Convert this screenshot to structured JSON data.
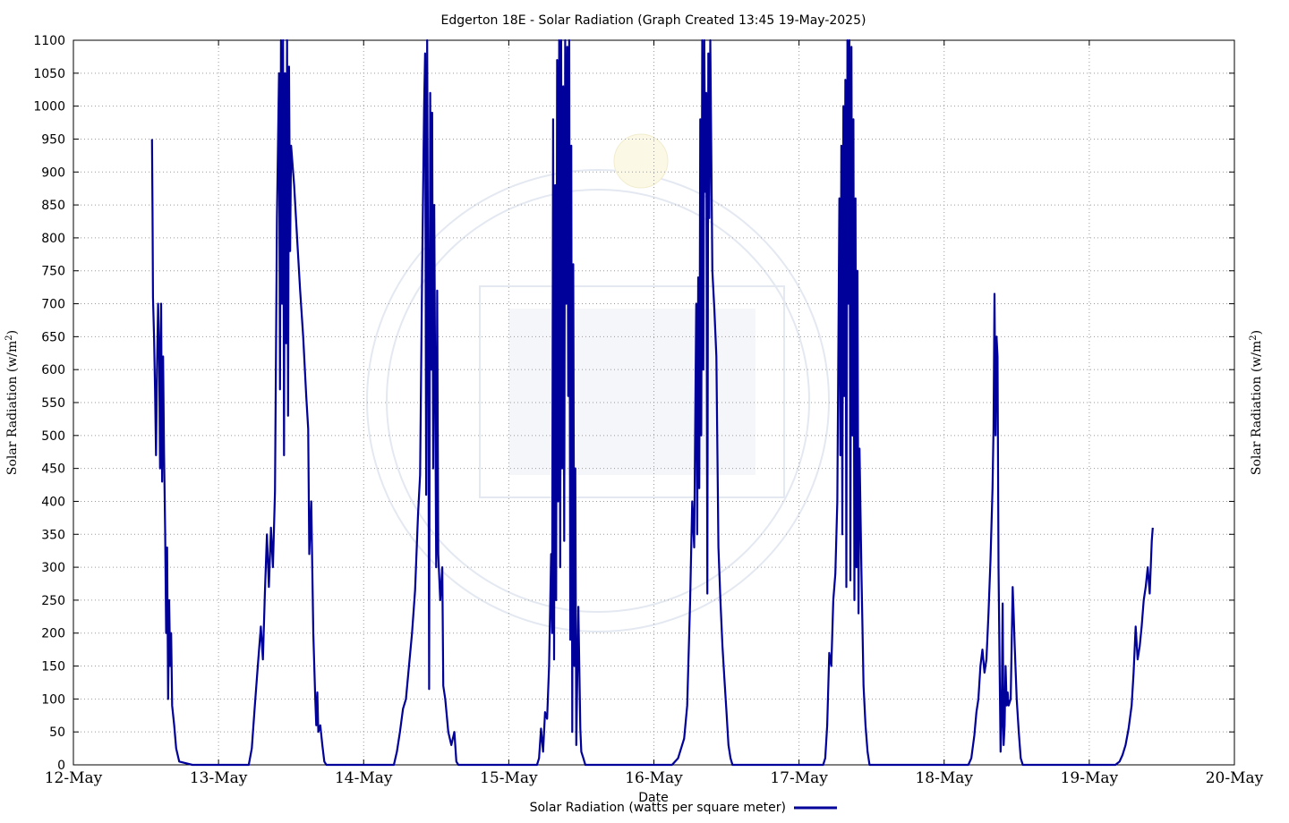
{
  "chart_data": {
    "type": "line",
    "title": "Edgerton 18E - Solar Radiation (Graph Created 13:45 19-May-2025)",
    "xlabel": "Date",
    "ylabel": "Solar Radiation (w/m",
    "ylabel_sup": "2",
    "ylabel_end": ")",
    "x_ticks": [
      "12-May",
      "13-May",
      "14-May",
      "15-May",
      "16-May",
      "17-May",
      "18-May",
      "19-May",
      "20-May"
    ],
    "xlim": [
      "2025-05-12 00:00",
      "2025-05-20 00:00"
    ],
    "ylim": [
      0,
      1100
    ],
    "y_ticks": [
      0,
      50,
      100,
      150,
      200,
      250,
      300,
      350,
      400,
      450,
      500,
      550,
      600,
      650,
      700,
      750,
      800,
      850,
      900,
      950,
      1000,
      1050,
      1100
    ],
    "grid": true,
    "legend_position": "bottom-right",
    "series": [
      {
        "name": "Solar Radiation (watts per square meter)",
        "color": "#00009a",
        "points": [
          [
            "2025-05-12 13:00",
            950
          ],
          [
            "2025-05-12 13:05",
            840
          ],
          [
            "2025-05-12 13:10",
            710
          ],
          [
            "2025-05-12 13:20",
            650
          ],
          [
            "2025-05-12 13:30",
            570
          ],
          [
            "2025-05-12 13:40",
            470
          ],
          [
            "2025-05-12 13:50",
            600
          ],
          [
            "2025-05-12 14:00",
            700
          ],
          [
            "2025-05-12 14:10",
            640
          ],
          [
            "2025-05-12 14:20",
            450
          ],
          [
            "2025-05-12 14:30",
            700
          ],
          [
            "2025-05-12 14:40",
            430
          ],
          [
            "2025-05-12 14:50",
            620
          ],
          [
            "2025-05-12 15:00",
            470
          ],
          [
            "2025-05-12 15:10",
            355
          ],
          [
            "2025-05-12 15:20",
            200
          ],
          [
            "2025-05-12 15:30",
            330
          ],
          [
            "2025-05-12 15:40",
            100
          ],
          [
            "2025-05-12 15:50",
            250
          ],
          [
            "2025-05-12 16:00",
            150
          ],
          [
            "2025-05-12 16:10",
            200
          ],
          [
            "2025-05-12 16:20",
            90
          ],
          [
            "2025-05-12 16:40",
            60
          ],
          [
            "2025-05-12 17:00",
            25
          ],
          [
            "2025-05-12 17:30",
            5
          ],
          [
            "2025-05-12 19:40",
            0
          ],
          [
            "2025-05-13 05:00",
            0
          ],
          [
            "2025-05-13 05:30",
            25
          ],
          [
            "2025-05-13 06:00",
            90
          ],
          [
            "2025-05-13 06:30",
            150
          ],
          [
            "2025-05-13 07:00",
            210
          ],
          [
            "2025-05-13 07:20",
            160
          ],
          [
            "2025-05-13 07:40",
            260
          ],
          [
            "2025-05-13 08:00",
            350
          ],
          [
            "2025-05-13 08:20",
            270
          ],
          [
            "2025-05-13 08:40",
            360
          ],
          [
            "2025-05-13 09:00",
            300
          ],
          [
            "2025-05-13 09:20",
            415
          ],
          [
            "2025-05-13 09:40",
            830
          ],
          [
            "2025-05-13 10:00",
            1050
          ],
          [
            "2025-05-13 10:10",
            570
          ],
          [
            "2025-05-13 10:20",
            1100
          ],
          [
            "2025-05-13 10:30",
            700
          ],
          [
            "2025-05-13 10:40",
            1100
          ],
          [
            "2025-05-13 10:50",
            470
          ],
          [
            "2025-05-13 11:00",
            1050
          ],
          [
            "2025-05-13 11:10",
            640
          ],
          [
            "2025-05-13 11:20",
            1100
          ],
          [
            "2025-05-13 11:30",
            530
          ],
          [
            "2025-05-13 11:40",
            1060
          ],
          [
            "2025-05-13 11:50",
            780
          ],
          [
            "2025-05-13 12:00",
            940
          ],
          [
            "2025-05-13 12:30",
            880
          ],
          [
            "2025-05-13 13:00",
            800
          ],
          [
            "2025-05-13 13:30",
            720
          ],
          [
            "2025-05-13 14:00",
            650
          ],
          [
            "2025-05-13 14:30",
            560
          ],
          [
            "2025-05-13 14:50",
            510
          ],
          [
            "2025-05-13 15:00",
            320
          ],
          [
            "2025-05-13 15:20",
            400
          ],
          [
            "2025-05-13 15:40",
            200
          ],
          [
            "2025-05-13 16:00",
            100
          ],
          [
            "2025-05-13 16:10",
            60
          ],
          [
            "2025-05-13 16:20",
            110
          ],
          [
            "2025-05-13 16:30",
            50
          ],
          [
            "2025-05-13 16:50",
            60
          ],
          [
            "2025-05-13 17:10",
            30
          ],
          [
            "2025-05-13 17:30",
            5
          ],
          [
            "2025-05-13 17:50",
            0
          ],
          [
            "2025-05-14 05:00",
            0
          ],
          [
            "2025-05-14 05:30",
            20
          ],
          [
            "2025-05-14 06:00",
            50
          ],
          [
            "2025-05-14 06:30",
            85
          ],
          [
            "2025-05-14 07:00",
            100
          ],
          [
            "2025-05-14 07:30",
            150
          ],
          [
            "2025-05-14 08:00",
            200
          ],
          [
            "2025-05-14 08:30",
            265
          ],
          [
            "2025-05-14 09:00",
            380
          ],
          [
            "2025-05-14 09:20",
            440
          ],
          [
            "2025-05-14 09:40",
            750
          ],
          [
            "2025-05-14 10:00",
            1000
          ],
          [
            "2025-05-14 10:10",
            1080
          ],
          [
            "2025-05-14 10:20",
            410
          ],
          [
            "2025-05-14 10:30",
            1100
          ],
          [
            "2025-05-14 10:40",
            700
          ],
          [
            "2025-05-14 10:50",
            115
          ],
          [
            "2025-05-14 11:00",
            1020
          ],
          [
            "2025-05-14 11:10",
            600
          ],
          [
            "2025-05-14 11:20",
            990
          ],
          [
            "2025-05-14 11:30",
            450
          ],
          [
            "2025-05-14 11:40",
            850
          ],
          [
            "2025-05-14 12:00",
            300
          ],
          [
            "2025-05-14 12:10",
            720
          ],
          [
            "2025-05-14 12:20",
            320
          ],
          [
            "2025-05-14 12:40",
            250
          ],
          [
            "2025-05-14 13:00",
            300
          ],
          [
            "2025-05-14 13:10",
            120
          ],
          [
            "2025-05-14 13:30",
            100
          ],
          [
            "2025-05-14 14:00",
            50
          ],
          [
            "2025-05-14 14:30",
            30
          ],
          [
            "2025-05-14 15:00",
            50
          ],
          [
            "2025-05-14 15:20",
            5
          ],
          [
            "2025-05-14 15:40",
            0
          ],
          [
            "2025-05-15 04:40",
            0
          ],
          [
            "2025-05-15 05:00",
            10
          ],
          [
            "2025-05-15 05:20",
            55
          ],
          [
            "2025-05-15 05:40",
            20
          ],
          [
            "2025-05-15 06:00",
            80
          ],
          [
            "2025-05-15 06:20",
            70
          ],
          [
            "2025-05-15 06:40",
            150
          ],
          [
            "2025-05-15 07:00",
            320
          ],
          [
            "2025-05-15 07:10",
            200
          ],
          [
            "2025-05-15 07:20",
            980
          ],
          [
            "2025-05-15 07:30",
            160
          ],
          [
            "2025-05-15 07:40",
            880
          ],
          [
            "2025-05-15 07:50",
            250
          ],
          [
            "2025-05-15 08:00",
            1070
          ],
          [
            "2025-05-15 08:10",
            400
          ],
          [
            "2025-05-15 08:20",
            1100
          ],
          [
            "2025-05-15 08:30",
            300
          ],
          [
            "2025-05-15 08:40",
            1100
          ],
          [
            "2025-05-15 08:50",
            450
          ],
          [
            "2025-05-15 09:00",
            1030
          ],
          [
            "2025-05-15 09:10",
            340
          ],
          [
            "2025-05-15 09:20",
            1100
          ],
          [
            "2025-05-15 09:30",
            700
          ],
          [
            "2025-05-15 09:40",
            1090
          ],
          [
            "2025-05-15 09:50",
            560
          ],
          [
            "2025-05-15 10:00",
            1100
          ],
          [
            "2025-05-15 10:10",
            190
          ],
          [
            "2025-05-15 10:20",
            940
          ],
          [
            "2025-05-15 10:30",
            50
          ],
          [
            "2025-05-15 10:40",
            760
          ],
          [
            "2025-05-15 10:50",
            150
          ],
          [
            "2025-05-15 11:00",
            450
          ],
          [
            "2025-05-15 11:10",
            30
          ],
          [
            "2025-05-15 11:30",
            240
          ],
          [
            "2025-05-15 11:50",
            55
          ],
          [
            "2025-05-15 12:00",
            20
          ],
          [
            "2025-05-15 12:20",
            10
          ],
          [
            "2025-05-15 12:40",
            0
          ],
          [
            "2025-05-16 03:00",
            0
          ],
          [
            "2025-05-16 04:00",
            10
          ],
          [
            "2025-05-16 05:00",
            40
          ],
          [
            "2025-05-16 05:30",
            90
          ],
          [
            "2025-05-16 06:00",
            250
          ],
          [
            "2025-05-16 06:20",
            400
          ],
          [
            "2025-05-16 06:40",
            330
          ],
          [
            "2025-05-16 07:00",
            700
          ],
          [
            "2025-05-16 07:10",
            350
          ],
          [
            "2025-05-16 07:20",
            740
          ],
          [
            "2025-05-16 07:30",
            420
          ],
          [
            "2025-05-16 07:40",
            980
          ],
          [
            "2025-05-16 07:50",
            500
          ],
          [
            "2025-05-16 08:00",
            1100
          ],
          [
            "2025-05-16 08:10",
            600
          ],
          [
            "2025-05-16 08:20",
            1100
          ],
          [
            "2025-05-16 08:30",
            870
          ],
          [
            "2025-05-16 08:40",
            1020
          ],
          [
            "2025-05-16 08:50",
            260
          ],
          [
            "2025-05-16 09:00",
            1080
          ],
          [
            "2025-05-16 09:10",
            830
          ],
          [
            "2025-05-16 09:20",
            1100
          ],
          [
            "2025-05-16 09:40",
            750
          ],
          [
            "2025-05-16 10:00",
            690
          ],
          [
            "2025-05-16 10:20",
            620
          ],
          [
            "2025-05-16 10:40",
            330
          ],
          [
            "2025-05-16 11:00",
            250
          ],
          [
            "2025-05-16 11:20",
            180
          ],
          [
            "2025-05-16 11:40",
            130
          ],
          [
            "2025-05-16 12:00",
            80
          ],
          [
            "2025-05-16 12:20",
            30
          ],
          [
            "2025-05-16 12:40",
            10
          ],
          [
            "2025-05-16 13:00",
            0
          ],
          [
            "2025-05-17 04:00",
            0
          ],
          [
            "2025-05-17 04:20",
            10
          ],
          [
            "2025-05-17 04:40",
            60
          ],
          [
            "2025-05-17 05:00",
            170
          ],
          [
            "2025-05-17 05:20",
            150
          ],
          [
            "2025-05-17 05:40",
            250
          ],
          [
            "2025-05-17 06:00",
            290
          ],
          [
            "2025-05-17 06:20",
            400
          ],
          [
            "2025-05-17 06:40",
            860
          ],
          [
            "2025-05-17 06:50",
            470
          ],
          [
            "2025-05-17 07:00",
            940
          ],
          [
            "2025-05-17 07:10",
            350
          ],
          [
            "2025-05-17 07:20",
            1000
          ],
          [
            "2025-05-17 07:30",
            560
          ],
          [
            "2025-05-17 07:40",
            1040
          ],
          [
            "2025-05-17 07:50",
            270
          ],
          [
            "2025-05-17 08:00",
            1100
          ],
          [
            "2025-05-17 08:10",
            700
          ],
          [
            "2025-05-17 08:20",
            1100
          ],
          [
            "2025-05-17 08:30",
            280
          ],
          [
            "2025-05-17 08:40",
            1090
          ],
          [
            "2025-05-17 08:50",
            500
          ],
          [
            "2025-05-17 09:00",
            980
          ],
          [
            "2025-05-17 09:10",
            250
          ],
          [
            "2025-05-17 09:20",
            860
          ],
          [
            "2025-05-17 09:30",
            300
          ],
          [
            "2025-05-17 09:40",
            750
          ],
          [
            "2025-05-17 09:50",
            230
          ],
          [
            "2025-05-17 10:00",
            480
          ],
          [
            "2025-05-17 10:20",
            290
          ],
          [
            "2025-05-17 10:40",
            120
          ],
          [
            "2025-05-17 11:00",
            60
          ],
          [
            "2025-05-17 11:20",
            20
          ],
          [
            "2025-05-17 11:40",
            0
          ],
          [
            "2025-05-18 04:00",
            0
          ],
          [
            "2025-05-18 04:30",
            10
          ],
          [
            "2025-05-18 05:00",
            45
          ],
          [
            "2025-05-18 05:20",
            80
          ],
          [
            "2025-05-18 05:40",
            100
          ],
          [
            "2025-05-18 06:00",
            150
          ],
          [
            "2025-05-18 06:20",
            175
          ],
          [
            "2025-05-18 06:40",
            140
          ],
          [
            "2025-05-18 07:00",
            160
          ],
          [
            "2025-05-18 07:20",
            230
          ],
          [
            "2025-05-18 07:40",
            310
          ],
          [
            "2025-05-18 08:00",
            420
          ],
          [
            "2025-05-18 08:10",
            510
          ],
          [
            "2025-05-18 08:20",
            715
          ],
          [
            "2025-05-18 08:30",
            500
          ],
          [
            "2025-05-18 08:40",
            650
          ],
          [
            "2025-05-18 08:50",
            620
          ],
          [
            "2025-05-18 09:00",
            300
          ],
          [
            "2025-05-18 09:10",
            150
          ],
          [
            "2025-05-18 09:20",
            20
          ],
          [
            "2025-05-18 09:30",
            60
          ],
          [
            "2025-05-18 09:40",
            245
          ],
          [
            "2025-05-18 09:50",
            30
          ],
          [
            "2025-05-18 10:00",
            60
          ],
          [
            "2025-05-18 10:10",
            150
          ],
          [
            "2025-05-18 10:20",
            90
          ],
          [
            "2025-05-18 10:30",
            110
          ],
          [
            "2025-05-18 10:40",
            90
          ],
          [
            "2025-05-18 11:00",
            100
          ],
          [
            "2025-05-18 11:20",
            270
          ],
          [
            "2025-05-18 11:30",
            230
          ],
          [
            "2025-05-18 11:40",
            180
          ],
          [
            "2025-05-18 12:00",
            100
          ],
          [
            "2025-05-18 12:20",
            50
          ],
          [
            "2025-05-18 12:40",
            10
          ],
          [
            "2025-05-18 13:00",
            0
          ],
          [
            "2025-05-19 04:20",
            0
          ],
          [
            "2025-05-19 05:00",
            5
          ],
          [
            "2025-05-19 05:30",
            15
          ],
          [
            "2025-05-19 06:00",
            30
          ],
          [
            "2025-05-19 06:30",
            55
          ],
          [
            "2025-05-19 07:00",
            90
          ],
          [
            "2025-05-19 07:20",
            140
          ],
          [
            "2025-05-19 07:40",
            210
          ],
          [
            "2025-05-19 08:00",
            160
          ],
          [
            "2025-05-19 08:20",
            180
          ],
          [
            "2025-05-19 08:40",
            210
          ],
          [
            "2025-05-19 09:00",
            250
          ],
          [
            "2025-05-19 09:20",
            270
          ],
          [
            "2025-05-19 09:40",
            300
          ],
          [
            "2025-05-19 10:00",
            260
          ],
          [
            "2025-05-19 10:20",
            340
          ],
          [
            "2025-05-19 10:30",
            360
          ]
        ]
      }
    ]
  }
}
